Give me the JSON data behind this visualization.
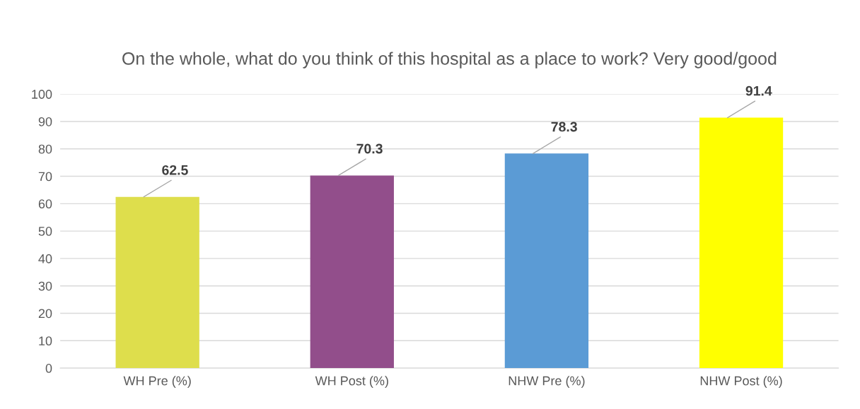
{
  "chart_data": {
    "type": "bar",
    "title": "On the whole, what do you think of this hospital as a place to work? Very good/good",
    "categories": [
      "WH Pre (%)",
      "WH Post (%)",
      "NHW Pre (%)",
      "NHW Post (%)"
    ],
    "values": [
      62.5,
      70.3,
      78.3,
      91.4
    ],
    "colors": [
      "#dede4c",
      "#924e8b",
      "#5b9bd5",
      "#ffff00"
    ],
    "ylim": [
      0,
      100
    ],
    "yticks": [
      0,
      10,
      20,
      30,
      40,
      50,
      60,
      70,
      80,
      90,
      100
    ],
    "grid": "y",
    "data_labels": true,
    "legend": false
  }
}
